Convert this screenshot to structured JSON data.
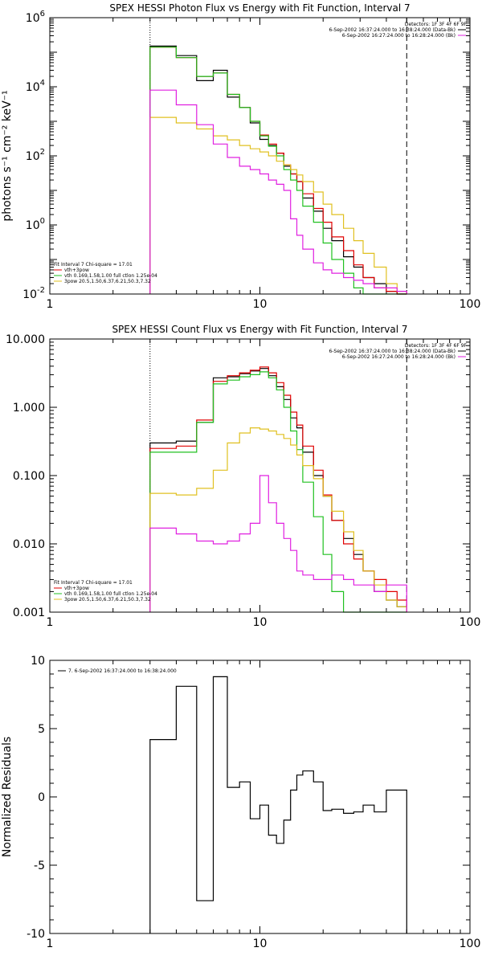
{
  "chart_data": [
    {
      "type": "line",
      "title": "SPEX HESSI Photon Flux vs Energy with Fit Function, Interval 7",
      "ylabel": "photons s⁻¹ cm⁻² keV⁻¹",
      "xscale": "log",
      "yscale": "log",
      "xlim": [
        1,
        100
      ],
      "ylim": [
        0.01,
        1000000
      ],
      "x_ticks": [
        "1",
        "10",
        "100"
      ],
      "y_ticks": [
        {
          "v": 0.01,
          "b": "10",
          "e": "-2"
        },
        {
          "v": 1,
          "b": "10",
          "e": "0"
        },
        {
          "v": 100,
          "b": "10",
          "e": "2"
        },
        {
          "v": 10000,
          "b": "10",
          "e": "4"
        },
        {
          "v": 1000000,
          "b": "10",
          "e": "6"
        }
      ],
      "vlines": [
        {
          "x": 3,
          "style": "dotted"
        },
        {
          "x": 50,
          "style": "dashed"
        }
      ],
      "legend_tr": [
        {
          "text": "Detectors: 1F 3F 4F 6F 9F",
          "color": null
        },
        {
          "text": "6-Sep-2002 16:37:24.000 to 16:38:24.000 (Data-Bk)",
          "color": "#000000"
        },
        {
          "text": "6-Sep-2002 16:27:24.000 to 16:28:24.000 (Bk)",
          "color": "#e020e0"
        }
      ],
      "legend_bl": [
        {
          "text": "Fit Interval 7   Chi-square = 17.01",
          "color": null
        },
        {
          "text": "vth+3pow",
          "color": "#e00000"
        },
        {
          "text": "vth 0.169,1.58,1.00  full ctlon 1.25e-04",
          "color": "#20c020"
        },
        {
          "text": "3pow 20.5,1.50,6.37,6.21,50.3,7.32",
          "color": "#e0c020"
        }
      ],
      "edges": [
        3,
        4,
        5,
        6,
        7,
        8,
        9,
        10,
        11,
        12,
        13,
        14,
        15,
        16,
        18,
        20,
        22,
        25,
        28,
        31,
        35,
        40,
        45,
        50
      ],
      "series": [
        {
          "name": "6-Sep-2002 16:37:24.000 to 16:38:24.000 (Data-Bk)",
          "color": "#000000",
          "values": [
            150000,
            80000,
            15000,
            30000,
            5000,
            2500,
            900,
            300,
            200,
            120,
            50,
            30,
            18,
            6,
            2.5,
            0.8,
            0.35,
            0.12,
            0.06,
            0.03,
            0.02,
            0.012,
            0.01
          ]
        },
        {
          "name": "vth+3pow",
          "color": "#e00000",
          "values": [
            140000,
            70000,
            20000,
            25000,
            6000,
            2500,
            1000,
            400,
            220,
            120,
            55,
            30,
            18,
            8,
            3,
            1.2,
            0.45,
            0.18,
            0.07,
            0.03,
            0.015,
            0.012,
            0.01
          ]
        },
        {
          "name": "vth 0.169,1.58,1.00  full ctlon 1.25e-04",
          "color": "#20c020",
          "values": [
            140000,
            70000,
            20000,
            25000,
            6000,
            2500,
            1000,
            380,
            190,
            100,
            40,
            20,
            10,
            3.5,
            1.2,
            0.3,
            0.1,
            0.04,
            0.015,
            0.01,
            0.01,
            0.01,
            0.01
          ]
        },
        {
          "name": "3pow 20.5,1.50,6.37,6.21,50.3,7.32",
          "color": "#e0c020",
          "values": [
            1300,
            900,
            600,
            380,
            290,
            200,
            160,
            130,
            100,
            70,
            55,
            40,
            28,
            18,
            9,
            4,
            2,
            0.8,
            0.35,
            0.15,
            0.06,
            0.02,
            0.012
          ]
        },
        {
          "name": "6-Sep-2002 16:27:24.000 to 16:28:24.000 (Bk)",
          "color": "#e020e0",
          "values": [
            8000,
            3000,
            800,
            220,
            90,
            50,
            40,
            30,
            20,
            15,
            10,
            1.5,
            0.5,
            0.2,
            0.08,
            0.05,
            0.04,
            0.03,
            0.025,
            0.02,
            0.015,
            0.015,
            0.012
          ]
        }
      ]
    },
    {
      "type": "line",
      "title": "SPEX HESSI Count Flux vs Energy with Fit Function, Interval 7",
      "ylabel": "",
      "xscale": "log",
      "yscale": "log",
      "xlim": [
        1,
        100
      ],
      "ylim": [
        0.001,
        10
      ],
      "x_ticks": [
        "1",
        "10",
        "100"
      ],
      "y_ticks": [
        {
          "v": 0.001,
          "t": "0.001"
        },
        {
          "v": 0.01,
          "t": "0.010"
        },
        {
          "v": 0.1,
          "t": "0.100"
        },
        {
          "v": 1,
          "t": "1.000"
        },
        {
          "v": 10,
          "t": "10.000"
        }
      ],
      "vlines": [
        {
          "x": 3,
          "style": "dotted"
        },
        {
          "x": 50,
          "style": "dashed"
        }
      ],
      "legend_tr": [
        {
          "text": "Detectors: 1F 3F 4F 6F 9F",
          "color": null
        },
        {
          "text": "6-Sep-2002 16:37:24.000 to 16:38:24.000 (Data-Bk)",
          "color": "#000000"
        },
        {
          "text": "6-Sep-2002 16:27:24.000 to 16:28:24.000 (Bk)",
          "color": "#e020e0"
        }
      ],
      "legend_bl": [
        {
          "text": "Fit Interval 7   Chi-square = 17.01",
          "color": null
        },
        {
          "text": "vth+3pow",
          "color": "#e00000"
        },
        {
          "text": "vth 0.169,1.58,1.00  full ctlon 1.25e-04",
          "color": "#20c020"
        },
        {
          "text": "3pow 20.5,1.50,6.37,6.21,50.3,7.32",
          "color": "#e0c020"
        }
      ],
      "edges": [
        3,
        4,
        5,
        6,
        7,
        8,
        9,
        10,
        11,
        12,
        13,
        14,
        15,
        16,
        18,
        20,
        22,
        25,
        28,
        31,
        35,
        40,
        45,
        50
      ],
      "series": [
        {
          "name": "6-Sep-2002 16:37:24.000 to 16:38:24.000 (Data-Bk)",
          "color": "#000000",
          "values": [
            0.3,
            0.32,
            0.6,
            2.7,
            2.8,
            3.1,
            3.4,
            3.7,
            2.9,
            2.0,
            1.3,
            0.7,
            0.5,
            0.22,
            0.1,
            0.05,
            0.022,
            0.012,
            0.007,
            0.004,
            0.002,
            0.0015,
            0.0012
          ]
        },
        {
          "name": "vth+3pow",
          "color": "#e00000",
          "values": [
            0.25,
            0.27,
            0.65,
            2.4,
            2.9,
            3.2,
            3.5,
            3.9,
            3.2,
            2.3,
            1.5,
            0.85,
            0.55,
            0.27,
            0.12,
            0.052,
            0.022,
            0.01,
            0.006,
            0.004,
            0.003,
            0.002,
            0.0015
          ]
        },
        {
          "name": "vth 0.169,1.58,1.00  full ctlon 1.25e-04",
          "color": "#20c020",
          "values": [
            0.22,
            0.22,
            0.6,
            2.2,
            2.5,
            2.8,
            3.0,
            3.3,
            2.7,
            1.8,
            1.0,
            0.45,
            0.24,
            0.08,
            0.025,
            0.007,
            0.002,
            0.001,
            0.001,
            0.001,
            0.001,
            0.001,
            0.001
          ]
        },
        {
          "name": "3pow 20.5,1.50,6.37,6.21,50.3,7.32",
          "color": "#e0c020",
          "values": [
            0.055,
            0.052,
            0.065,
            0.12,
            0.3,
            0.42,
            0.5,
            0.48,
            0.45,
            0.4,
            0.35,
            0.28,
            0.2,
            0.14,
            0.09,
            0.05,
            0.03,
            0.015,
            0.008,
            0.004,
            0.0025,
            0.0015,
            0.0012
          ]
        },
        {
          "name": "6-Sep-2002 16:27:24.000 to 16:28:24.000 (Bk)",
          "color": "#e020e0",
          "values": [
            0.017,
            0.014,
            0.011,
            0.01,
            0.011,
            0.014,
            0.02,
            0.1,
            0.04,
            0.02,
            0.012,
            0.008,
            0.004,
            0.0035,
            0.003,
            0.003,
            0.0035,
            0.003,
            0.0025,
            0.0025,
            0.002,
            0.0025,
            0.0025
          ]
        }
      ]
    },
    {
      "type": "line",
      "title": "",
      "ylabel": "Normalized Residuals",
      "xscale": "log",
      "yscale": "linear",
      "xlim": [
        1,
        100
      ],
      "ylim": [
        -10,
        10
      ],
      "x_ticks": [
        "1",
        "10",
        "100"
      ],
      "y_ticks": [
        {
          "v": -10,
          "t": "-10"
        },
        {
          "v": -5,
          "t": "-5"
        },
        {
          "v": 0,
          "t": "0"
        },
        {
          "v": 5,
          "t": "5"
        },
        {
          "v": 10,
          "t": "10"
        }
      ],
      "vlines": [],
      "legend_tl": [
        {
          "text": "7. 6-Sep-2002 16:37:24.000 to 16:38:24.000",
          "color": "#000000"
        }
      ],
      "edges": [
        3,
        4,
        5,
        6,
        7,
        8,
        9,
        10,
        11,
        12,
        13,
        14,
        15,
        16,
        18,
        20,
        22,
        25,
        28,
        31,
        35,
        40,
        45,
        50
      ],
      "series": [
        {
          "name": "7. 6-Sep-2002 16:37:24.000 to 16:38:24.000",
          "color": "#000000",
          "values": [
            4.2,
            8.1,
            -7.6,
            8.8,
            0.7,
            1.1,
            -1.6,
            -0.6,
            -2.8,
            -3.4,
            -1.7,
            0.5,
            1.6,
            1.9,
            1.1,
            -1.0,
            -0.9,
            -1.2,
            -1.1,
            -0.6,
            -1.1,
            0.5,
            0.5
          ]
        }
      ]
    }
  ]
}
